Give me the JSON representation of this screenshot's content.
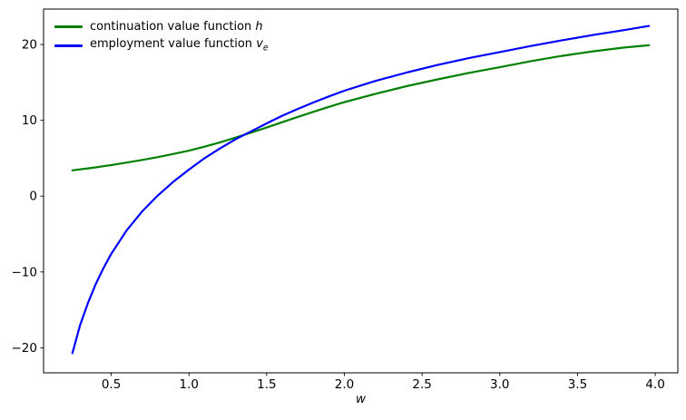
{
  "chart_data": {
    "type": "line",
    "title": "",
    "xlabel": "w",
    "ylabel": "",
    "grid": false,
    "legend_position": "upper-left",
    "x_axis": {
      "label": "w",
      "range": [
        0.0645,
        4.1455
      ],
      "ticks": [
        0.5,
        1.0,
        1.5,
        2.0,
        2.5,
        3.0,
        3.5,
        4.0
      ],
      "tick_labels": [
        "0.5",
        "1.0",
        "1.5",
        "2.0",
        "2.5",
        "3.0",
        "3.5",
        "4.0"
      ]
    },
    "y_axis": {
      "label": "",
      "range": [
        -23.3,
        24.67
      ],
      "ticks": [
        20,
        10,
        0,
        -10,
        -20
      ],
      "tick_labels": [
        "20",
        "10",
        "0",
        "−10",
        "−20"
      ]
    },
    "x": [
      0.25,
      0.3,
      0.35,
      0.4,
      0.45,
      0.5,
      0.6,
      0.7,
      0.8,
      0.9,
      1.0,
      1.1,
      1.2,
      1.3,
      1.4,
      1.5,
      1.6,
      1.7,
      1.8,
      1.9,
      2.0,
      2.2,
      2.4,
      2.6,
      2.8,
      3.0,
      3.2,
      3.4,
      3.6,
      3.8,
      3.96
    ],
    "series": [
      {
        "name": "continuation-value-h",
        "label": "continuation value function h",
        "color": "#008000",
        "line_width": 2.2,
        "y": [
          3.4,
          3.53,
          3.66,
          3.8,
          3.95,
          4.1,
          4.43,
          4.78,
          5.15,
          5.56,
          6.0,
          6.52,
          7.1,
          7.72,
          8.38,
          9.05,
          9.75,
          10.45,
          11.12,
          11.78,
          12.4,
          13.5,
          14.5,
          15.4,
          16.25,
          17.0,
          17.8,
          18.5,
          19.1,
          19.6,
          19.9
        ]
      },
      {
        "name": "employment-value-ve",
        "label": "employment value function v_e",
        "color": "#0000ff",
        "line_width": 2.2,
        "y": [
          -20.7,
          -17.0,
          -14.1,
          -11.6,
          -9.5,
          -7.6,
          -4.5,
          -2.0,
          0.1,
          1.9,
          3.5,
          5.0,
          6.3,
          7.5,
          8.55,
          9.6,
          10.6,
          11.5,
          12.35,
          13.15,
          13.9,
          15.2,
          16.3,
          17.3,
          18.2,
          19.0,
          19.8,
          20.55,
          21.25,
          21.9,
          22.45
        ]
      }
    ],
    "legend": {
      "entries": [
        {
          "prefix": "continuation value function ",
          "math": "h",
          "sub": "",
          "color": "#008000"
        },
        {
          "prefix": "employment value function ",
          "math": "v",
          "sub": "e",
          "color": "#0000ff"
        }
      ]
    },
    "axis_color": "#000000",
    "crossing_point": {
      "w": 1.4,
      "value": 8.5
    }
  }
}
